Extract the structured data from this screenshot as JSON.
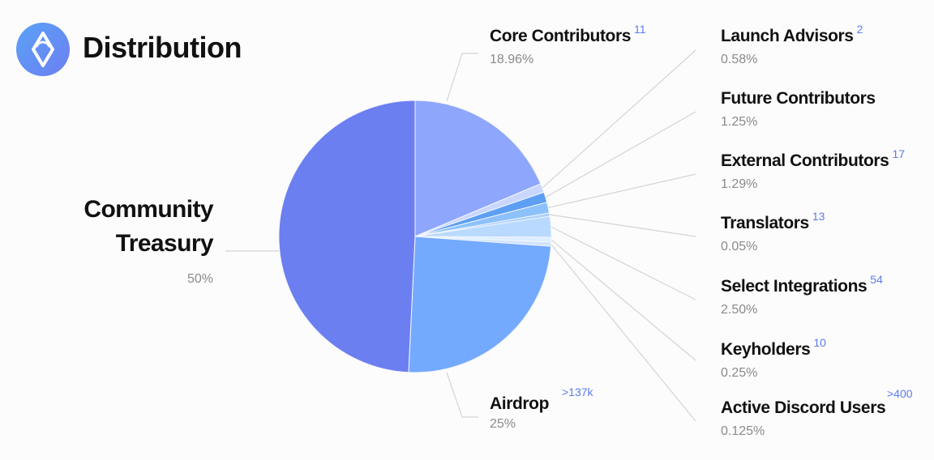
{
  "header": {
    "title": "Distribution"
  },
  "colors": {
    "treasury": "#6b7ff0",
    "airdrop": "#74aafd",
    "core": "#8ea6fb",
    "leader": "#d4d4d4",
    "count": "#5a7bf0"
  },
  "chart_data": {
    "type": "pie",
    "title": "Distribution",
    "slices": [
      {
        "label": "Community Treasury",
        "value": 50,
        "display_value": "50%",
        "count": "",
        "color": "#6b7ff0"
      },
      {
        "label": "Airdrop",
        "value": 25,
        "display_value": "25%",
        "count": ">137k",
        "color": "#74aafd"
      },
      {
        "label": "Core Contributors",
        "value": 18.96,
        "display_value": "18.96%",
        "count": "11",
        "color": "#8ea6fb"
      },
      {
        "label": "Launch Advisors",
        "value": 0.58,
        "display_value": "0.58%",
        "count": "2",
        "color": "#c9d6fd"
      },
      {
        "label": "Future Contributors",
        "value": 1.25,
        "display_value": "1.25%",
        "count": "",
        "color": "#5d9ff2"
      },
      {
        "label": "External Contributors",
        "value": 1.29,
        "display_value": "1.29%",
        "count": "17",
        "color": "#8cc1fb"
      },
      {
        "label": "Translators",
        "value": 0.05,
        "display_value": "0.05%",
        "count": "13",
        "color": "#a9cffd"
      },
      {
        "label": "Select Integrations",
        "value": 2.5,
        "display_value": "2.50%",
        "count": "54",
        "color": "#b9dafe"
      },
      {
        "label": "Keyholders",
        "value": 0.25,
        "display_value": "0.25%",
        "count": "10",
        "color": "#ddeeff"
      },
      {
        "label": "Active Discord Users",
        "value": 0.125,
        "display_value": "0.125%",
        "count": ">400",
        "color": "#cfe4fd"
      }
    ]
  }
}
